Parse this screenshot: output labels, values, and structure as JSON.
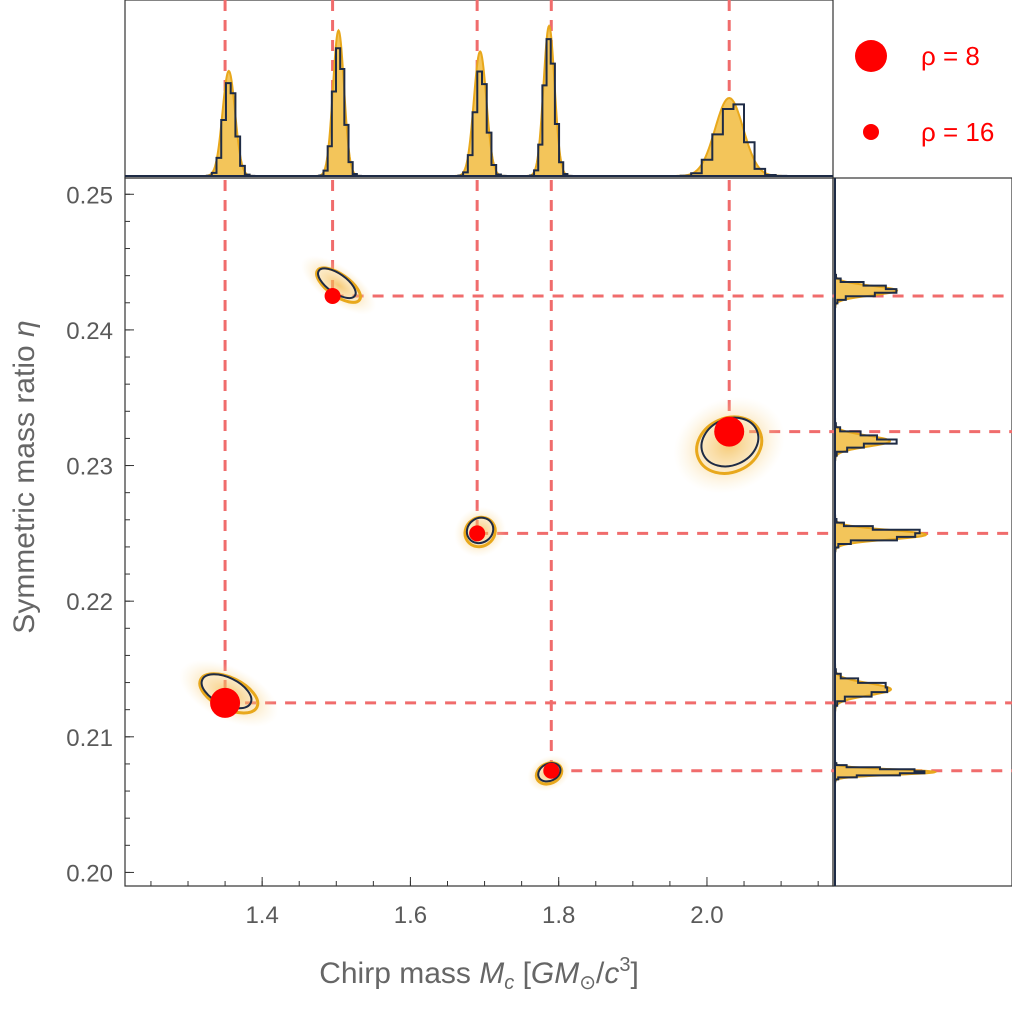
{
  "chart_data": {
    "type": "scatter",
    "title": "",
    "xlabel": "Chirp mass M_c [GM_⊙/c^3]",
    "xlabel_parts": [
      "Chirp mass ",
      "M",
      "c",
      " [",
      "GM",
      "⊙",
      "/",
      "c",
      "3",
      "]"
    ],
    "ylabel": "Symmetric mass ratio η",
    "ylabel_parts": [
      "Symmetric mass ratio ",
      "η"
    ],
    "xlim": [
      1.215,
      2.17
    ],
    "ylim": [
      0.199,
      0.2512
    ],
    "xticks": [
      1.4,
      1.6,
      1.8,
      2.0
    ],
    "xtick_labels": [
      "1.4",
      "1.6",
      "1.8",
      "2.0"
    ],
    "yticks": [
      0.2,
      0.21,
      0.22,
      0.23,
      0.24,
      0.25
    ],
    "ytick_labels": [
      "0.20",
      "0.21",
      "0.22",
      "0.23",
      "0.24",
      "0.25"
    ],
    "grid": false,
    "legend_position": "top-right",
    "legend": [
      {
        "label": "ρ = 8",
        "snr": 8
      },
      {
        "label": "ρ = 16",
        "snr": 16
      }
    ],
    "points": [
      {
        "chirp_mass": 1.35,
        "eta": 0.2125,
        "snr": 8
      },
      {
        "chirp_mass": 1.495,
        "eta": 0.2425,
        "snr": 16
      },
      {
        "chirp_mass": 1.69,
        "eta": 0.225,
        "snr": 16
      },
      {
        "chirp_mass": 1.79,
        "eta": 0.2075,
        "snr": 16
      },
      {
        "chirp_mass": 2.03,
        "eta": 0.2325,
        "snr": 8
      }
    ],
    "posterior_contours": [
      {
        "center": [
          1.355,
          0.2132
        ],
        "sigma_mc": 0.02,
        "sigma_eta": 0.0022,
        "tilt_deg": -64
      },
      {
        "center": [
          1.503,
          0.2433
        ],
        "sigma_mc": 0.014,
        "sigma_eta": 0.0018,
        "tilt_deg": -55
      },
      {
        "center": [
          1.694,
          0.2251
        ],
        "sigma_mc": 0.02,
        "sigma_eta": 0.001,
        "tilt_deg": -35
      },
      {
        "center": [
          1.787,
          0.2073
        ],
        "sigma_mc": 0.017,
        "sigma_eta": 0.0007,
        "tilt_deg": -25
      },
      {
        "center": [
          2.03,
          0.2315
        ],
        "sigma_mc": 0.043,
        "sigma_eta": 0.0019,
        "tilt_deg": -24
      }
    ],
    "marginal_chirp_mass": [
      {
        "mean": 1.355,
        "sd": 0.0085,
        "rel_peak": 0.7
      },
      {
        "mean": 1.503,
        "sd": 0.0075,
        "rel_peak": 0.97
      },
      {
        "mean": 1.694,
        "sd": 0.0085,
        "rel_peak": 0.83
      },
      {
        "mean": 1.787,
        "sd": 0.0075,
        "rel_peak": 1.0
      },
      {
        "mean": 2.03,
        "sd": 0.019,
        "rel_peak": 0.52
      }
    ],
    "marginal_eta": [
      {
        "mean": 0.2429,
        "sd": 0.00035,
        "rel_peak": 0.62
      },
      {
        "mean": 0.2318,
        "sd": 0.0004,
        "rel_peak": 0.55
      },
      {
        "mean": 0.2249,
        "sd": 0.00035,
        "rel_peak": 0.91
      },
      {
        "mean": 0.2135,
        "sd": 0.00045,
        "rel_peak": 0.56
      },
      {
        "mean": 0.2074,
        "sd": 0.0002,
        "rel_peak": 1.0
      }
    ],
    "colors": {
      "marker": "#ff0000",
      "dashed_line": "#f06c6c",
      "density_fill": "#f3c55a",
      "density_outline": "#e8a81c",
      "histogram_outline": "#1e2b45",
      "frame": "#333333"
    }
  }
}
